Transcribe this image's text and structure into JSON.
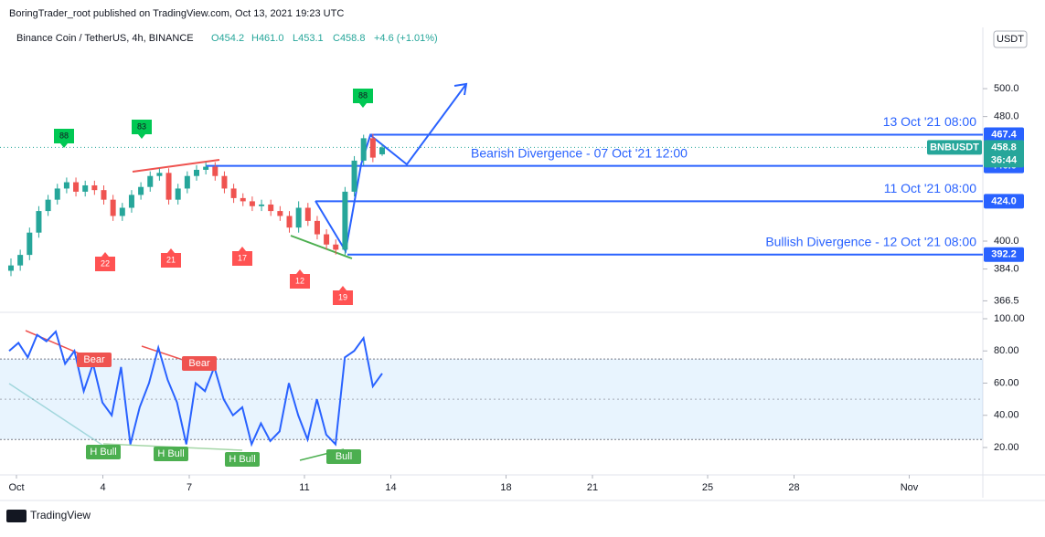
{
  "header": "BoringTrader_root published on TradingView.com, Oct 13, 2021 19:23 UTC",
  "legend": {
    "symbol": "Binance Coin / TetherUS, 4h, BINANCE",
    "open": "O454.2",
    "high": "H461.0",
    "low": "L453.1",
    "close": "C458.8",
    "change": "+4.6 (+1.01%)"
  },
  "currency": "USDT",
  "price_pane": {
    "scale": "log",
    "yticks": [
      {
        "value": 500,
        "label": "500.0"
      },
      {
        "value": 480,
        "label": "480.0"
      },
      {
        "value": 400,
        "label": "400.0"
      },
      {
        "value": 384,
        "label": "384.0"
      },
      366.5
    ],
    "candles": [
      [
        383,
        390,
        380,
        386
      ],
      [
        386,
        395,
        383,
        392
      ],
      [
        392,
        408,
        389,
        405
      ],
      [
        405,
        421,
        402,
        418
      ],
      [
        418,
        428,
        415,
        425
      ],
      [
        425,
        435,
        422,
        432
      ],
      [
        432,
        439,
        429,
        436
      ],
      [
        436,
        439,
        427,
        430
      ],
      [
        430,
        437,
        427,
        434
      ],
      [
        434,
        437,
        428,
        431
      ],
      [
        431,
        434,
        422,
        425
      ],
      [
        425,
        428,
        412,
        415
      ],
      [
        415,
        423,
        412,
        420
      ],
      [
        420,
        431,
        417,
        428
      ],
      [
        428,
        436,
        425,
        433
      ],
      [
        433,
        443,
        430,
        440
      ],
      [
        440,
        445,
        437,
        442
      ],
      [
        442,
        445,
        422,
        425
      ],
      [
        425,
        435,
        422,
        432
      ],
      [
        432,
        443,
        429,
        440
      ],
      [
        440,
        447,
        437,
        444
      ],
      [
        444,
        449,
        441,
        446
      ],
      [
        446,
        449,
        437,
        440
      ],
      [
        440,
        443,
        429,
        432
      ],
      [
        432,
        435,
        423,
        426
      ],
      [
        426,
        429,
        421,
        424
      ],
      [
        424,
        427,
        418,
        421
      ],
      [
        421,
        425,
        418,
        422
      ],
      [
        422,
        425,
        415,
        418
      ],
      [
        418,
        421,
        412,
        415
      ],
      [
        415,
        418,
        405,
        408
      ],
      [
        408,
        424,
        405,
        420
      ],
      [
        420,
        423,
        409,
        412
      ],
      [
        412,
        415,
        401,
        404
      ],
      [
        404,
        407,
        395,
        398
      ],
      [
        398,
        401,
        392.2,
        395
      ],
      [
        395,
        433,
        392,
        430
      ],
      [
        430,
        453,
        427,
        450
      ],
      [
        450,
        467.4,
        447,
        465
      ],
      [
        465,
        468,
        449,
        452
      ],
      [
        454.2,
        461,
        453.1,
        458.8
      ]
    ],
    "last": {
      "symbol": "BNBUSDT",
      "value": 458.8,
      "countdown": "36:44"
    },
    "levels": [
      {
        "value": 467.4,
        "text": "13 Oct '21 08:00"
      },
      {
        "value": 446.6,
        "text": "Bearish Divergence - 07 Oct '21 12:00"
      },
      {
        "value": {
          "value": 424,
          "label": "424.0"
        },
        "text": "11 Oct '21 08:00"
      },
      {
        "value": 392.2,
        "text": "Bullish Divergence - 12 Oct '21 08:00"
      }
    ],
    "badges_up": [
      88,
      83,
      88
    ],
    "badges_down": [
      22,
      21,
      17,
      12,
      19
    ]
  },
  "rsi_pane": {
    "ylim": [
      0,
      100
    ],
    "yticks": [
      {
        "value": 100,
        "label": "100.00"
      },
      {
        "value": 80,
        "label": "80.00"
      },
      {
        "value": 60,
        "label": "60.00"
      },
      {
        "value": 40,
        "label": "40.00"
      },
      {
        "value": 20,
        "label": "20.00"
      }
    ],
    "band": [
      25,
      75
    ],
    "mid": 50,
    "values": [
      80,
      85,
      76,
      90,
      86,
      92,
      72,
      80,
      55,
      72,
      48,
      40,
      70,
      22,
      45,
      60,
      82,
      62,
      48,
      22,
      60,
      55,
      70,
      50,
      40,
      45,
      22,
      35,
      24,
      30,
      60,
      40,
      25,
      50,
      28,
      22,
      76,
      80,
      88,
      58,
      66
    ],
    "labels": [
      "Bear",
      "Bear",
      "H Bull",
      "H Bull",
      "H Bull",
      "Bull"
    ]
  },
  "x_axis": {
    "ticks": [
      {
        "value": 1,
        "label": "Oct"
      },
      4,
      7,
      11,
      14,
      18,
      21,
      25,
      28,
      {
        "value": 32,
        "label": "Nov"
      }
    ]
  },
  "footer": "TradingView"
}
